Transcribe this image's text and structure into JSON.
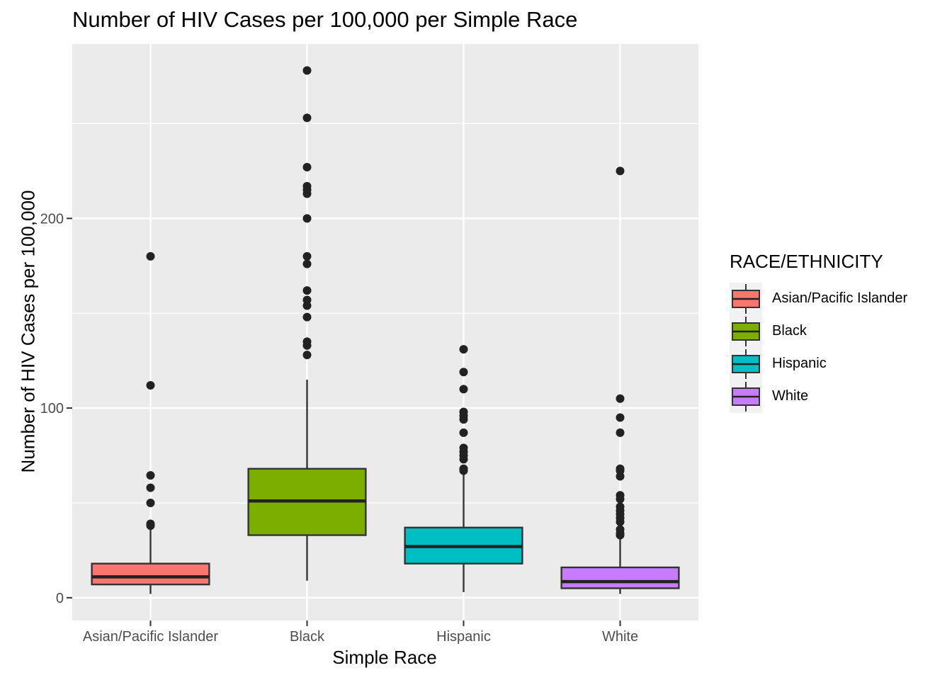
{
  "chart_data": {
    "type": "boxplot",
    "title": "Number of HIV Cases per 100,000 per Simple Race",
    "xlabel": "Simple Race",
    "ylabel": "Number of HIV Cases per 100,000",
    "ylim": [
      -12,
      292
    ],
    "yticks": [
      0,
      100,
      200
    ],
    "ytick_labels": [
      "0",
      "100",
      "200"
    ],
    "grid": true,
    "legend": {
      "title": "RACE/ETHNICITY",
      "placement": "right"
    },
    "categories": [
      "Asian/Pacific Islander",
      "Black",
      "Hispanic",
      "White"
    ],
    "series": [
      {
        "name": "Asian/Pacific Islander",
        "color": "#F8766D",
        "whisker_low": 2,
        "q1": 7,
        "median": 11,
        "q3": 18,
        "whisker_high": 37,
        "outliers": [
          180,
          112,
          64.5,
          58,
          50,
          39,
          38
        ]
      },
      {
        "name": "Black",
        "color": "#7CAE00",
        "whisker_low": 9,
        "q1": 33,
        "median": 51,
        "q3": 68,
        "whisker_high": 115,
        "outliers": [
          278,
          253,
          227,
          217,
          215,
          213,
          200,
          180,
          176,
          162,
          157,
          154,
          148,
          135,
          133,
          128
        ]
      },
      {
        "name": "Hispanic",
        "color": "#00BFC4",
        "whisker_low": 3,
        "q1": 18,
        "median": 27,
        "q3": 37,
        "whisker_high": 66,
        "outliers": [
          131,
          119,
          110,
          98,
          96,
          94,
          87,
          79,
          77,
          75,
          73,
          68,
          67
        ]
      },
      {
        "name": "White",
        "color": "#C77CFF",
        "whisker_low": 2,
        "q1": 5,
        "median": 8.5,
        "q3": 16,
        "whisker_high": 31,
        "outliers": [
          225,
          105,
          95,
          87,
          68,
          67,
          64,
          54,
          52,
          48,
          46,
          44,
          42,
          40,
          36,
          34,
          33
        ]
      }
    ]
  }
}
